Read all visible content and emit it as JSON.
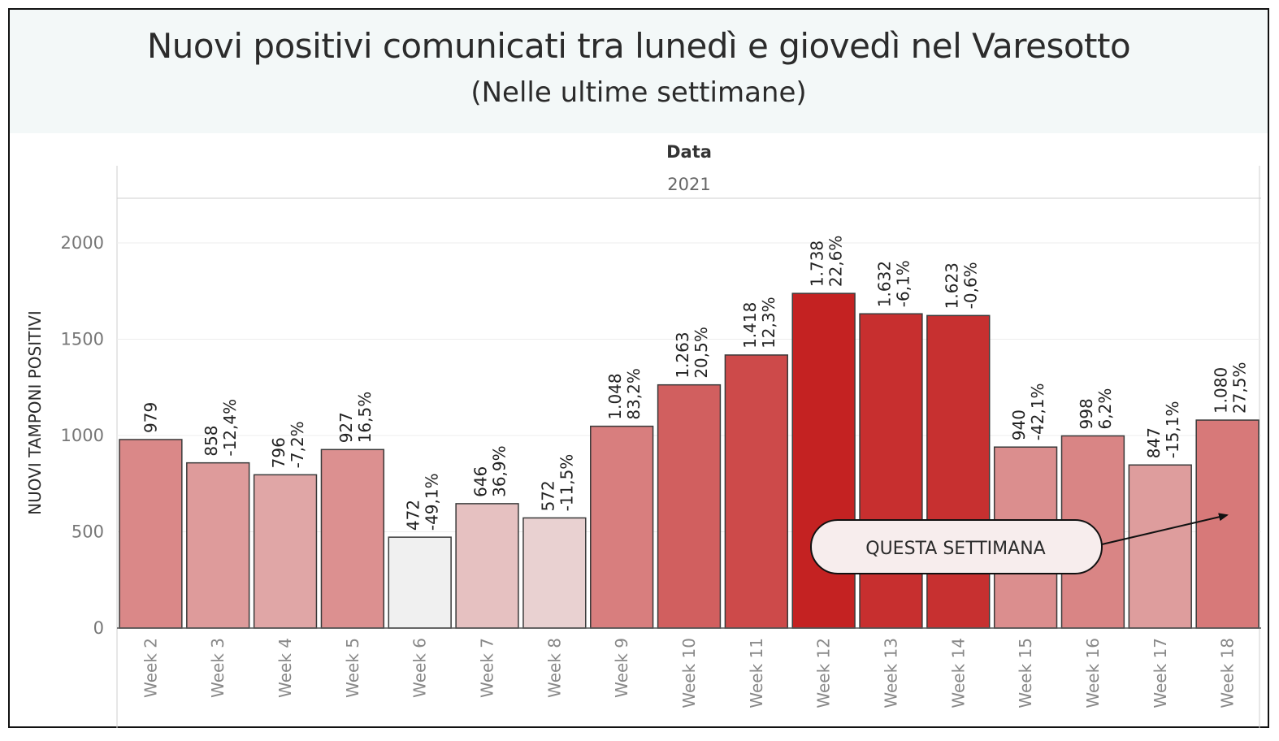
{
  "title": "Nuovi positivi comunicati tra lunedì e giovedì nel Varesotto",
  "subtitle": "(Nelle ultime settimane)",
  "column_header": "Data",
  "year_header": "2021",
  "annotation": "QUESTA SETTIMANA",
  "colors": {
    "low": "#f0f0f0",
    "high": "#c42222",
    "border": "#3a3a3a"
  },
  "chart_data": {
    "type": "bar",
    "title": "Nuovi positivi comunicati tra lunedì e giovedì nel Varesotto",
    "subtitle": "(Nelle ultime settimane)",
    "xlabel": "",
    "ylabel": "NUOVI TAMPONI POSITIVI",
    "ylim": [
      0,
      2200
    ],
    "yticks": [
      0,
      500,
      1000,
      1500,
      2000
    ],
    "grid": true,
    "categories": [
      "Week 2",
      "Week 3",
      "Week 4",
      "Week 5",
      "Week 6",
      "Week 7",
      "Week 8",
      "Week 9",
      "Week 10",
      "Week 11",
      "Week 12",
      "Week 13",
      "Week 14",
      "Week 15",
      "Week 16",
      "Week 17",
      "Week 18"
    ],
    "values": [
      979,
      858,
      796,
      927,
      472,
      646,
      572,
      1048,
      1263,
      1418,
      1738,
      1632,
      1623,
      940,
      998,
      847,
      1080
    ],
    "value_labels": [
      "979",
      "858",
      "796",
      "927",
      "472",
      "646",
      "572",
      "1.048",
      "1.263",
      "1.418",
      "1.738",
      "1.632",
      "1.623",
      "940",
      "998",
      "847",
      "1.080"
    ],
    "pct_labels": [
      "",
      "-12,4%",
      "-7,2%",
      "16,5%",
      "-49,1%",
      "36,9%",
      "-11,5%",
      "83,2%",
      "20,5%",
      "12,3%",
      "22,6%",
      "-6,1%",
      "-0,6%",
      "-42,1%",
      "6,2%",
      "-15,1%",
      "27,5%"
    ]
  }
}
